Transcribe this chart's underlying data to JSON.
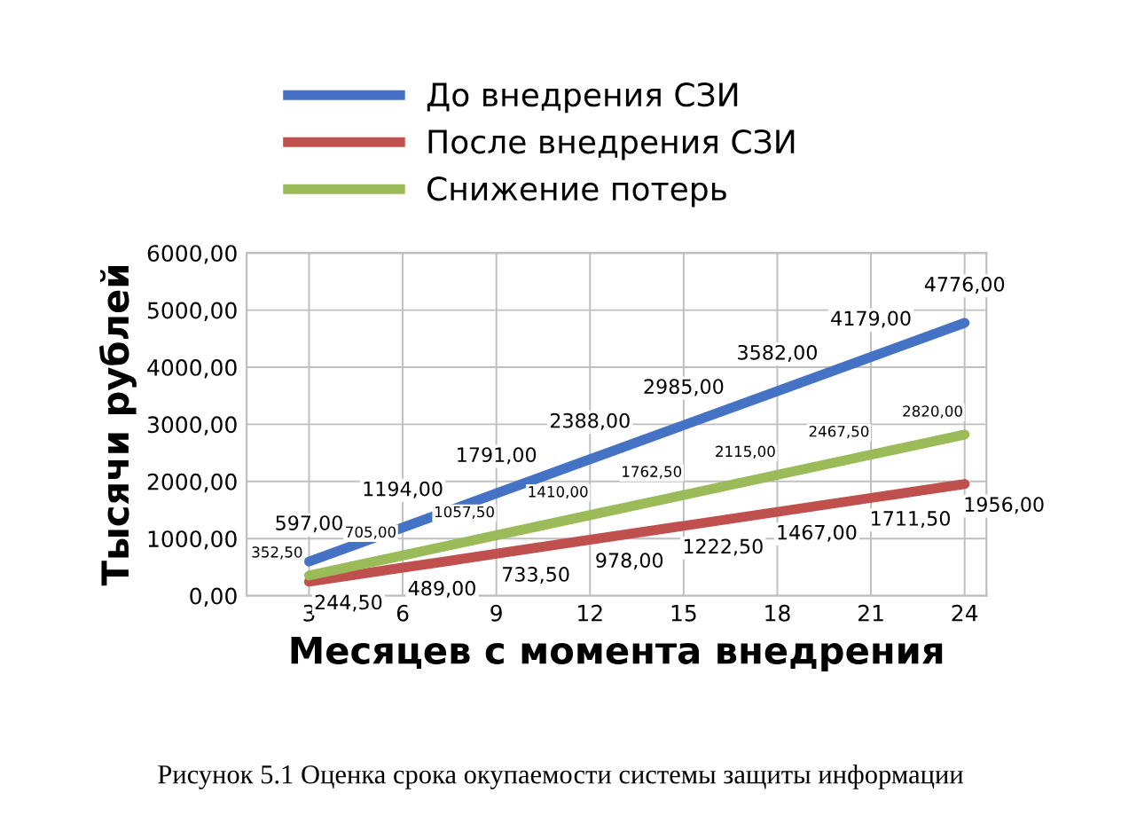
{
  "chart_data": {
    "type": "line",
    "xlabel": "Месяцев с момента внедрения",
    "ylabel": "Тысячи рублей",
    "x": [
      3,
      6,
      9,
      12,
      15,
      18,
      21,
      24
    ],
    "series": [
      {
        "name": "До внедрения СЗИ",
        "color": "#4472c4",
        "values": [
          597,
          1194,
          1791,
          2388,
          2985,
          3582,
          4179,
          4776
        ],
        "value_labels": [
          "597,00",
          "1194,00",
          "1791,00",
          "2388,00",
          "2985,00",
          "3582,00",
          "4179,00",
          "4776,00"
        ]
      },
      {
        "name": "После внедрения СЗИ",
        "color": "#c0504d",
        "values": [
          244.5,
          489,
          733.5,
          978,
          1222.5,
          1467,
          1711.5,
          1956
        ],
        "value_labels": [
          "244,50",
          "489,00",
          "733,50",
          "978,00",
          "1222,50",
          "1467,00",
          "1711,50",
          "1956,00"
        ]
      },
      {
        "name": "Снижение потерь",
        "color": "#9bbb59",
        "values": [
          352.5,
          705,
          1057.5,
          1410,
          1762.5,
          2115,
          2467.5,
          2820
        ],
        "value_labels": [
          "352,50",
          "705,00",
          "1057,50",
          "1410,00",
          "1762,50",
          "2115,00",
          "2467,50",
          "2820,00"
        ]
      }
    ],
    "xlim": [
      1,
      24.7
    ],
    "xticks": [
      3,
      6,
      9,
      12,
      15,
      18,
      21,
      24
    ],
    "ylim": [
      0,
      6000
    ],
    "yticks": [
      {
        "value": 0,
        "label": "0,00"
      },
      {
        "value": 1000,
        "label": "1000,00"
      },
      {
        "value": 2000,
        "label": "2000,00"
      },
      {
        "value": 3000,
        "label": "3000,00"
      },
      {
        "value": 4000,
        "label": "4000,00"
      },
      {
        "value": 5000,
        "label": "5000,00"
      },
      {
        "value": 6000,
        "label": "6000,00"
      }
    ],
    "grid": true,
    "legend": "top",
    "marker": "none",
    "line_style": "solid",
    "annotations": [
      "Рисунок 5.1 Оценка срока окупаемости системы защиты информации"
    ]
  }
}
